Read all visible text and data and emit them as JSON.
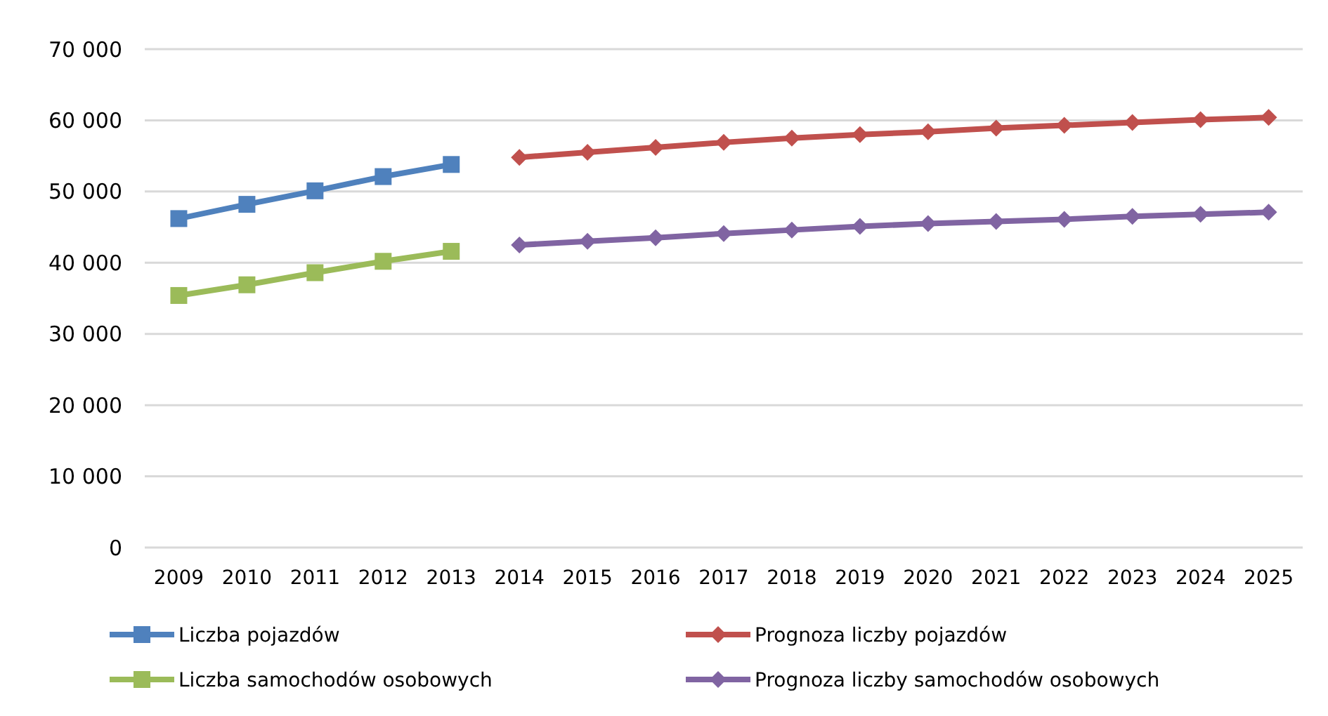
{
  "chart_data": {
    "type": "line",
    "categories": [
      "2009",
      "2010",
      "2011",
      "2012",
      "2013",
      "2014",
      "2015",
      "2016",
      "2017",
      "2018",
      "2019",
      "2020",
      "2021",
      "2022",
      "2023",
      "2024",
      "2025"
    ],
    "series": [
      {
        "name": "Liczba pojazdów",
        "color": "#4f81bd",
        "marker": "square",
        "values": [
          46200,
          48200,
          50100,
          52100,
          53800,
          null,
          null,
          null,
          null,
          null,
          null,
          null,
          null,
          null,
          null,
          null,
          null
        ]
      },
      {
        "name": "Prognoza liczby pojazdów",
        "color": "#c0504d",
        "marker": "diamond",
        "values": [
          null,
          null,
          null,
          null,
          null,
          54800,
          55500,
          56200,
          56900,
          57500,
          58000,
          58400,
          58900,
          59300,
          59700,
          60100,
          60400
        ]
      },
      {
        "name": "Liczba samochodów osobowych",
        "color": "#9bbb59",
        "marker": "square",
        "values": [
          35400,
          36900,
          38600,
          40200,
          41600,
          null,
          null,
          null,
          null,
          null,
          null,
          null,
          null,
          null,
          null,
          null,
          null
        ]
      },
      {
        "name": "Prognoza liczby samochodów osobowych",
        "color": "#8064a2",
        "marker": "diamond",
        "values": [
          null,
          null,
          null,
          null,
          null,
          42500,
          43000,
          43500,
          44100,
          44600,
          45100,
          45500,
          45800,
          46100,
          46500,
          46800,
          47100
        ]
      }
    ],
    "ylim": [
      0,
      70000
    ],
    "yticks": [
      {
        "value": 0,
        "label": "0"
      },
      {
        "value": 10000,
        "label": "10 000"
      },
      {
        "value": 20000,
        "label": "20 000"
      },
      {
        "value": 30000,
        "label": "30 000"
      },
      {
        "value": 40000,
        "label": "40 000"
      },
      {
        "value": 50000,
        "label": "50 000"
      },
      {
        "value": 60000,
        "label": "60 000"
      },
      {
        "value": 70000,
        "label": "70 000"
      }
    ],
    "grid": "y",
    "legend": "bottom",
    "line_style": "solid"
  }
}
